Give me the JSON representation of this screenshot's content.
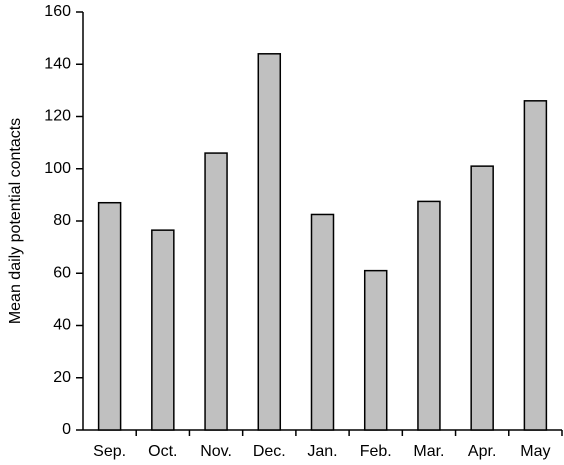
{
  "chart_data": {
    "type": "bar",
    "y_label": "Mean daily potential contacts",
    "categories": [
      "Sep.",
      "Oct.",
      "Nov.",
      "Dec.",
      "Jan.",
      "Feb.",
      "Mar.",
      "Apr.",
      "May"
    ],
    "values": [
      87,
      76.5,
      106,
      144,
      82.5,
      61,
      87.5,
      101,
      126
    ],
    "color": "#c0c0c0",
    "ylim": [
      0,
      160
    ],
    "yticks": [
      0,
      20,
      40,
      60,
      80,
      100,
      120,
      140,
      160
    ],
    "grid": false
  }
}
